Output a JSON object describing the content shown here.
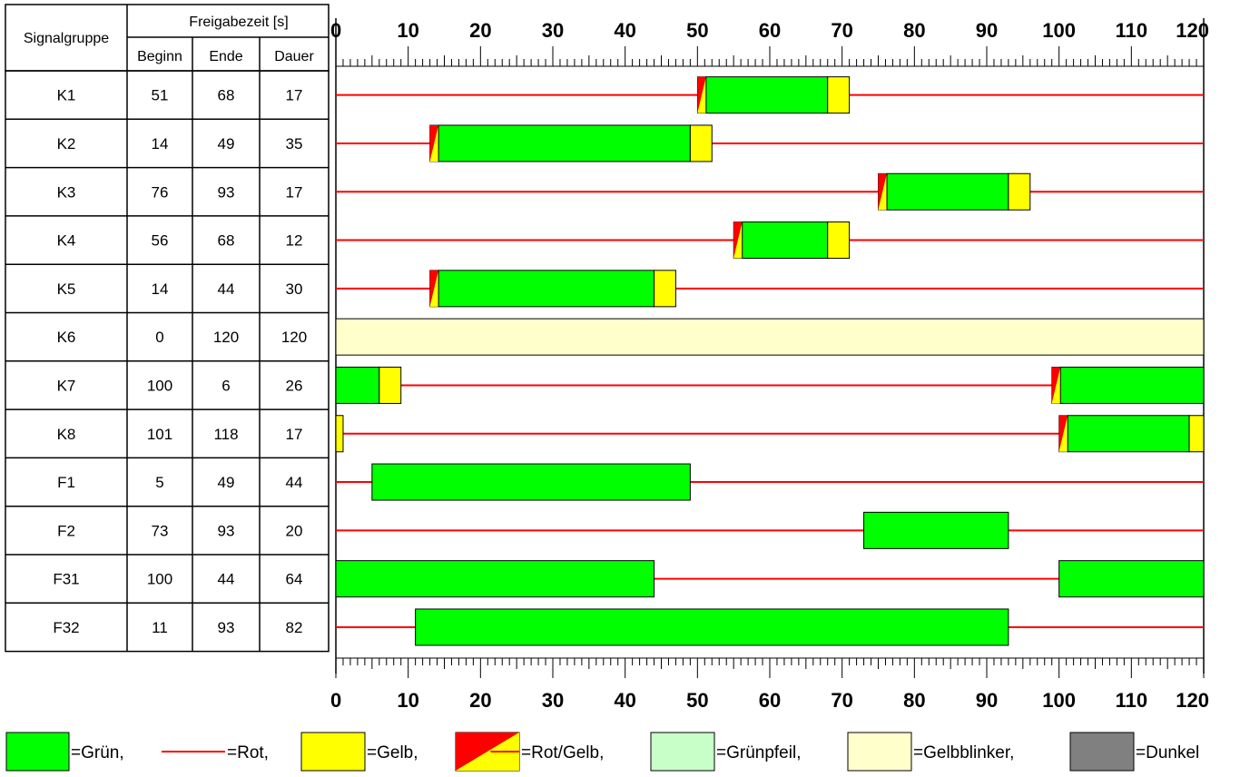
{
  "table": {
    "header_signal": "Signalgruppe",
    "header_group": "Freigabezeit [s]",
    "header_begin": "Beginn",
    "header_end": "Ende",
    "header_duration": "Dauer"
  },
  "chart_data": {
    "type": "signal-timing-diagram",
    "x_range": [
      0,
      120
    ],
    "major_ticks": [
      0,
      10,
      20,
      30,
      40,
      50,
      60,
      70,
      80,
      90,
      100,
      110,
      120
    ],
    "minor_tick_step": 1,
    "groups": [
      {
        "name": "K1",
        "begin": "51",
        "end": "68",
        "duration": "17",
        "segments": [
          {
            "kind": "rotgelb",
            "start": 50,
            "end": 51.2
          },
          {
            "kind": "gruen",
            "start": 51.2,
            "end": 68
          },
          {
            "kind": "gelb",
            "start": 68,
            "end": 71
          }
        ]
      },
      {
        "name": "K2",
        "begin": "14",
        "end": "49",
        "duration": "35",
        "segments": [
          {
            "kind": "rotgelb",
            "start": 13,
            "end": 14.2
          },
          {
            "kind": "gruen",
            "start": 14.2,
            "end": 49
          },
          {
            "kind": "gelb",
            "start": 49,
            "end": 52
          }
        ]
      },
      {
        "name": "K3",
        "begin": "76",
        "end": "93",
        "duration": "17",
        "segments": [
          {
            "kind": "rotgelb",
            "start": 75,
            "end": 76.2
          },
          {
            "kind": "gruen",
            "start": 76.2,
            "end": 93
          },
          {
            "kind": "gelb",
            "start": 93,
            "end": 96
          }
        ]
      },
      {
        "name": "K4",
        "begin": "56",
        "end": "68",
        "duration": "12",
        "segments": [
          {
            "kind": "rotgelb",
            "start": 55,
            "end": 56.2
          },
          {
            "kind": "gruen",
            "start": 56.2,
            "end": 68
          },
          {
            "kind": "gelb",
            "start": 68,
            "end": 71
          }
        ]
      },
      {
        "name": "K5",
        "begin": "14",
        "end": "44",
        "duration": "30",
        "segments": [
          {
            "kind": "rotgelb",
            "start": 13,
            "end": 14.2
          },
          {
            "kind": "gruen",
            "start": 14.2,
            "end": 44
          },
          {
            "kind": "gelb",
            "start": 44,
            "end": 47
          }
        ]
      },
      {
        "name": "K6",
        "begin": "0",
        "end": "120",
        "duration": "120",
        "segments": [
          {
            "kind": "gelbblinker",
            "start": 0,
            "end": 120
          }
        ]
      },
      {
        "name": "K7",
        "begin": "100",
        "end": "6",
        "duration": "26",
        "segments": [
          {
            "kind": "gruen",
            "start": 0,
            "end": 6
          },
          {
            "kind": "gelb",
            "start": 6,
            "end": 9
          },
          {
            "kind": "rotgelb",
            "start": 99,
            "end": 100.2
          },
          {
            "kind": "gruen",
            "start": 100.2,
            "end": 120
          }
        ]
      },
      {
        "name": "K8",
        "begin": "101",
        "end": "118",
        "duration": "17",
        "segments": [
          {
            "kind": "gelb",
            "start": 0,
            "end": 1
          },
          {
            "kind": "rotgelb",
            "start": 100,
            "end": 101.2
          },
          {
            "kind": "gruen",
            "start": 101.2,
            "end": 118
          },
          {
            "kind": "gelb",
            "start": 118,
            "end": 120
          }
        ]
      },
      {
        "name": "F1",
        "begin": "5",
        "end": "49",
        "duration": "44",
        "segments": [
          {
            "kind": "gruen",
            "start": 5,
            "end": 49
          }
        ]
      },
      {
        "name": "F2",
        "begin": "73",
        "end": "93",
        "duration": "20",
        "segments": [
          {
            "kind": "gruen",
            "start": 73,
            "end": 93
          }
        ]
      },
      {
        "name": "F31",
        "begin": "100",
        "end": "44",
        "duration": "64",
        "segments": [
          {
            "kind": "gruen",
            "start": 0,
            "end": 44
          },
          {
            "kind": "gruen",
            "start": 100,
            "end": 120
          }
        ]
      },
      {
        "name": "F32",
        "begin": "11",
        "end": "93",
        "duration": "82",
        "segments": [
          {
            "kind": "gruen",
            "start": 11,
            "end": 93
          }
        ]
      }
    ]
  },
  "colors": {
    "gruen": "#00ff00",
    "rot": "#ff0000",
    "gelb": "#ffff00",
    "gruenpfeil": "#c8ffc8",
    "gelbblinker": "#ffffcc",
    "dunkel": "#808080"
  },
  "legend": [
    {
      "kind": "gruen",
      "label": "=Grün,"
    },
    {
      "kind": "rot",
      "label": "=Rot,"
    },
    {
      "kind": "gelb",
      "label": "=Gelb,"
    },
    {
      "kind": "rotgelb",
      "label": "=Rot/Gelb,"
    },
    {
      "kind": "gruenpfeil",
      "label": "=Grünpfeil,"
    },
    {
      "kind": "gelbblinker",
      "label": "=Gelbblinker,"
    },
    {
      "kind": "dunkel",
      "label": "=Dunkel"
    }
  ]
}
